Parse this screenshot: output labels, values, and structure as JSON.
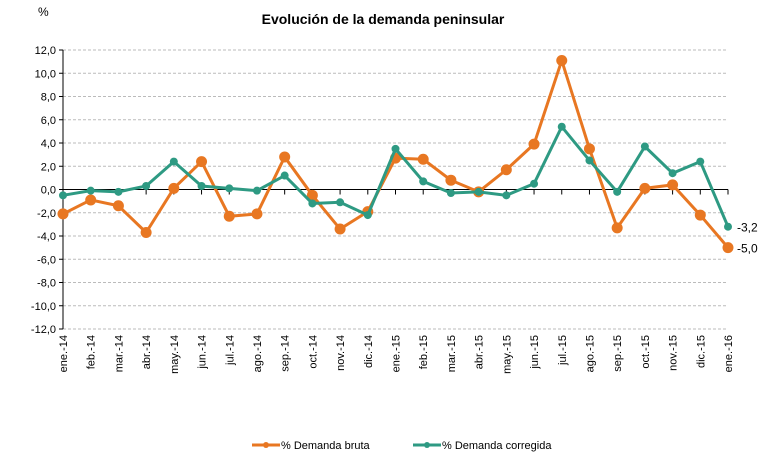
{
  "chart_data": {
    "type": "line",
    "title": "Evolución de la demanda peninsular",
    "ylabel": "%",
    "ylim": [
      -12,
      12
    ],
    "yticks": [
      "12,0",
      "10,0",
      "8,0",
      "6,0",
      "4,0",
      "2,0",
      "0,0",
      "-2,0",
      "-4,0",
      "-6,0",
      "-8,0",
      "-10,0",
      "-12,0"
    ],
    "grid": true,
    "legend": "bottom",
    "categories": [
      "ene.-14",
      "feb.-14",
      "mar.-14",
      "abr.-14",
      "may.-14",
      "jun.-14",
      "jul.-14",
      "ago.-14",
      "sep.-14",
      "oct.-14",
      "nov.-14",
      "dic.-14",
      "ene.-15",
      "feb.-15",
      "mar.-15",
      "abr.-15",
      "may.-15",
      "jun.-15",
      "jul.-15",
      "ago.-15",
      "sep.-15",
      "oct.-15",
      "nov.-15",
      "dic.-15",
      "ene.-16"
    ],
    "series": [
      {
        "name": "% Demanda bruta",
        "color": "#E87722",
        "values": [
          -2.1,
          -0.9,
          -1.4,
          -3.7,
          0.1,
          2.4,
          -2.3,
          -2.1,
          2.8,
          -0.5,
          -3.4,
          -1.9,
          2.7,
          2.6,
          0.8,
          -0.2,
          1.7,
          3.9,
          11.1,
          3.5,
          -3.3,
          0.1,
          0.4,
          -2.2,
          -5.0
        ],
        "last_label": "-5,0"
      },
      {
        "name": "% Demanda corregida",
        "color": "#2E9A83",
        "values": [
          -0.5,
          -0.1,
          -0.2,
          0.3,
          2.4,
          0.3,
          0.1,
          -0.1,
          1.2,
          -1.2,
          -1.1,
          -2.2,
          3.5,
          0.7,
          -0.3,
          -0.2,
          -0.5,
          0.5,
          5.4,
          2.5,
          -0.2,
          3.7,
          1.4,
          2.4,
          -3.2
        ],
        "last_label": "-3,2"
      }
    ]
  }
}
